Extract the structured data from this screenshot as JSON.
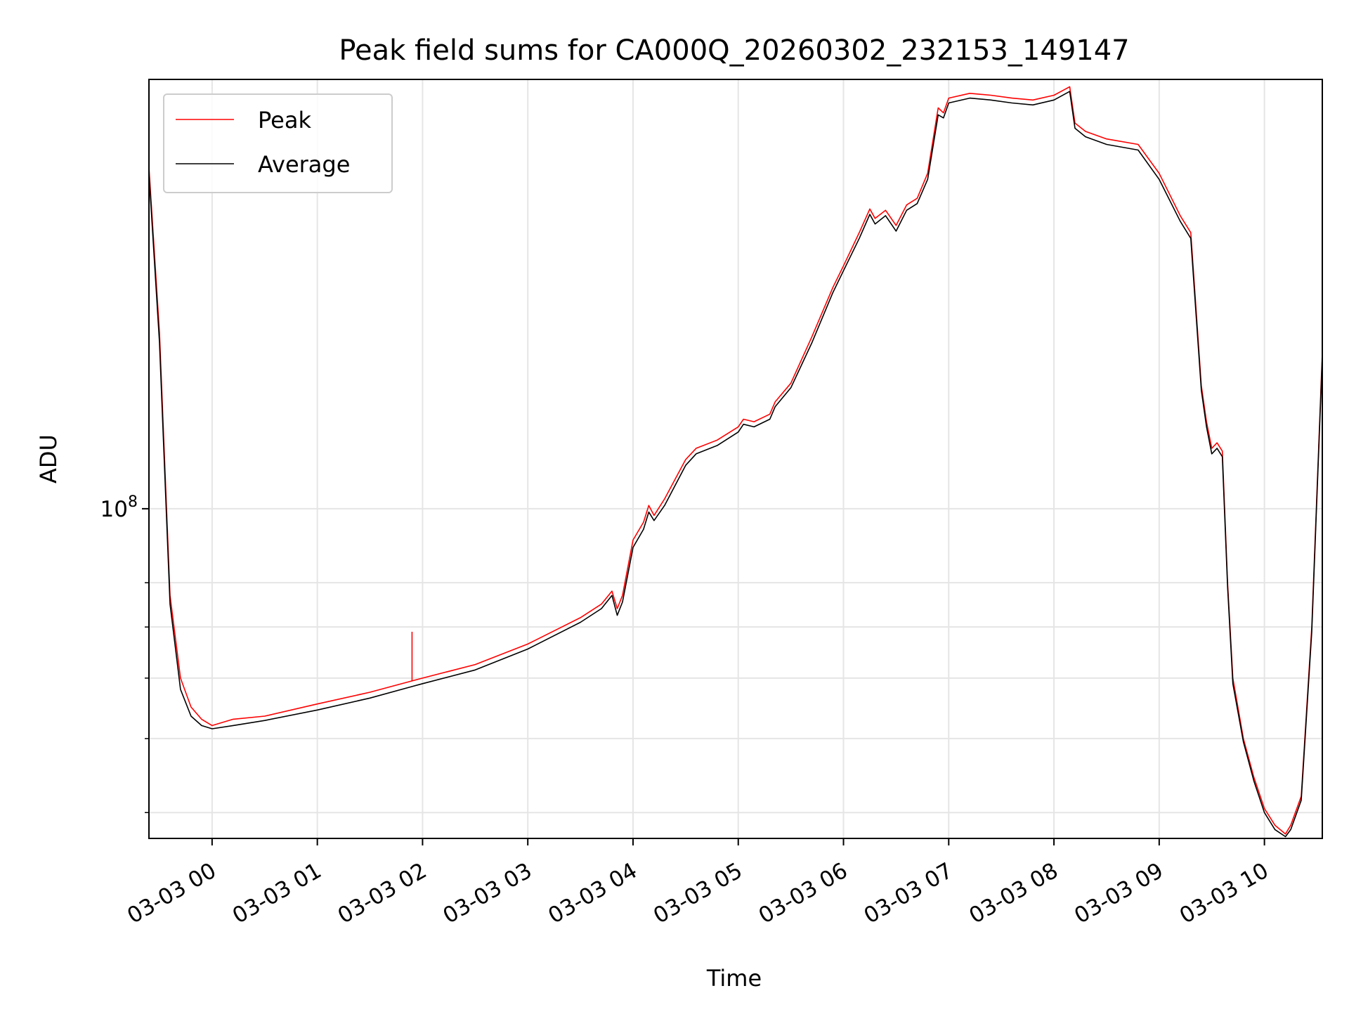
{
  "chart_data": {
    "type": "line",
    "title": "Peak field sums for CA000Q_20260302_232153_149147",
    "xlabel": "Time",
    "ylabel": "ADU",
    "y_scale": "log",
    "ylim": [
      37000000,
      365000000
    ],
    "xlim_hours": [
      -0.6,
      10.55
    ],
    "x_ticks": [
      {
        "h": 0,
        "label": "03-03 00"
      },
      {
        "h": 1,
        "label": "03-03 01"
      },
      {
        "h": 2,
        "label": "03-03 02"
      },
      {
        "h": 3,
        "label": "03-03 03"
      },
      {
        "h": 4,
        "label": "03-03 04"
      },
      {
        "h": 5,
        "label": "03-03 05"
      },
      {
        "h": 6,
        "label": "03-03 06"
      },
      {
        "h": 7,
        "label": "03-03 07"
      },
      {
        "h": 8,
        "label": "03-03 08"
      },
      {
        "h": 9,
        "label": "03-03 09"
      },
      {
        "h": 10,
        "label": "03-03 10"
      }
    ],
    "y_major_ticks": [
      {
        "value": 100000000,
        "base": "10",
        "exp": "8"
      }
    ],
    "y_minor_ticks": [
      40000000,
      50000000,
      60000000,
      70000000,
      80000000
    ],
    "grid": true,
    "legend": {
      "position": "top-left"
    },
    "series": [
      {
        "name": "Peak",
        "color": "#ff0000",
        "x_hours": [
          -0.6,
          -0.5,
          -0.4,
          -0.3,
          -0.2,
          -0.1,
          0.0,
          0.2,
          0.5,
          1.0,
          1.5,
          1.9,
          2.0,
          2.5,
          3.0,
          3.5,
          3.7,
          3.8,
          3.85,
          3.9,
          4.0,
          4.1,
          4.15,
          4.2,
          4.3,
          4.5,
          4.6,
          4.8,
          5.0,
          5.05,
          5.15,
          5.3,
          5.35,
          5.5,
          5.7,
          5.9,
          6.0,
          6.15,
          6.25,
          6.3,
          6.4,
          6.5,
          6.6,
          6.7,
          6.8,
          6.9,
          6.95,
          7.0,
          7.2,
          7.4,
          7.6,
          7.8,
          8.0,
          8.15,
          8.2,
          8.3,
          8.5,
          8.8,
          9.0,
          9.2,
          9.3,
          9.4,
          9.45,
          9.5,
          9.55,
          9.6,
          9.65,
          9.7,
          9.8,
          9.9,
          10.0,
          10.1,
          10.2,
          10.25,
          10.35,
          10.45,
          10.55
        ],
        "values": [
          280000000,
          170000000,
          77000000,
          60000000,
          55000000,
          53000000,
          52000000,
          53000000,
          53500000,
          55500000,
          57500000,
          59500000,
          60000000,
          62500000,
          66500000,
          72000000,
          75000000,
          78000000,
          74000000,
          77000000,
          91000000,
          96000000,
          101000000,
          98000000,
          103000000,
          116000000,
          120000000,
          123000000,
          128000000,
          131000000,
          130000000,
          133000000,
          138000000,
          146000000,
          168000000,
          195000000,
          208000000,
          230000000,
          247000000,
          240000000,
          246000000,
          235000000,
          250000000,
          255000000,
          275000000,
          335000000,
          330000000,
          345000000,
          350000000,
          348000000,
          345000000,
          343000000,
          348000000,
          357000000,
          320000000,
          312000000,
          305000000,
          300000000,
          275000000,
          242000000,
          230000000,
          145000000,
          130000000,
          120000000,
          122000000,
          119000000,
          80000000,
          60000000,
          50000000,
          44500000,
          40500000,
          38500000,
          37500000,
          38500000,
          42000000,
          70000000,
          160000000
        ]
      },
      {
        "name": "Average",
        "color": "#000000",
        "x_hours": [
          -0.6,
          -0.5,
          -0.4,
          -0.3,
          -0.2,
          -0.1,
          0.0,
          0.2,
          0.5,
          1.0,
          1.5,
          1.9,
          2.0,
          2.5,
          3.0,
          3.5,
          3.7,
          3.8,
          3.85,
          3.9,
          4.0,
          4.1,
          4.15,
          4.2,
          4.3,
          4.5,
          4.6,
          4.8,
          5.0,
          5.05,
          5.15,
          5.3,
          5.35,
          5.5,
          5.7,
          5.9,
          6.0,
          6.15,
          6.25,
          6.3,
          6.4,
          6.5,
          6.6,
          6.7,
          6.8,
          6.9,
          6.95,
          7.0,
          7.2,
          7.4,
          7.6,
          7.8,
          8.0,
          8.15,
          8.2,
          8.3,
          8.5,
          8.8,
          9.0,
          9.2,
          9.3,
          9.4,
          9.45,
          9.5,
          9.55,
          9.6,
          9.65,
          9.7,
          9.8,
          9.9,
          10.0,
          10.1,
          10.2,
          10.25,
          10.35,
          10.45,
          10.55
        ],
        "values": [
          275000000,
          165000000,
          75000000,
          58000000,
          53500000,
          52000000,
          51500000,
          52000000,
          52800000,
          54500000,
          56500000,
          58500000,
          59000000,
          61500000,
          65500000,
          71000000,
          74000000,
          77000000,
          72500000,
          75500000,
          89000000,
          94000000,
          99000000,
          96500000,
          101000000,
          114000000,
          118000000,
          121000000,
          126000000,
          129000000,
          128000000,
          131000000,
          136000000,
          144000000,
          165000000,
          192000000,
          205000000,
          226000000,
          243000000,
          236000000,
          242000000,
          231000000,
          246000000,
          251000000,
          270000000,
          328000000,
          325000000,
          340000000,
          345000000,
          343000000,
          340000000,
          338000000,
          343000000,
          352000000,
          315000000,
          307000000,
          300000000,
          295000000,
          270000000,
          238000000,
          226000000,
          143000000,
          128000000,
          118000000,
          120000000,
          117000000,
          79000000,
          59000000,
          49500000,
          44000000,
          40000000,
          38000000,
          37200000,
          38000000,
          41500000,
          69000000,
          158000000
        ]
      }
    ],
    "spikes": [
      {
        "series": "Peak",
        "x_hours": 1.9,
        "value": 69000000
      }
    ]
  }
}
